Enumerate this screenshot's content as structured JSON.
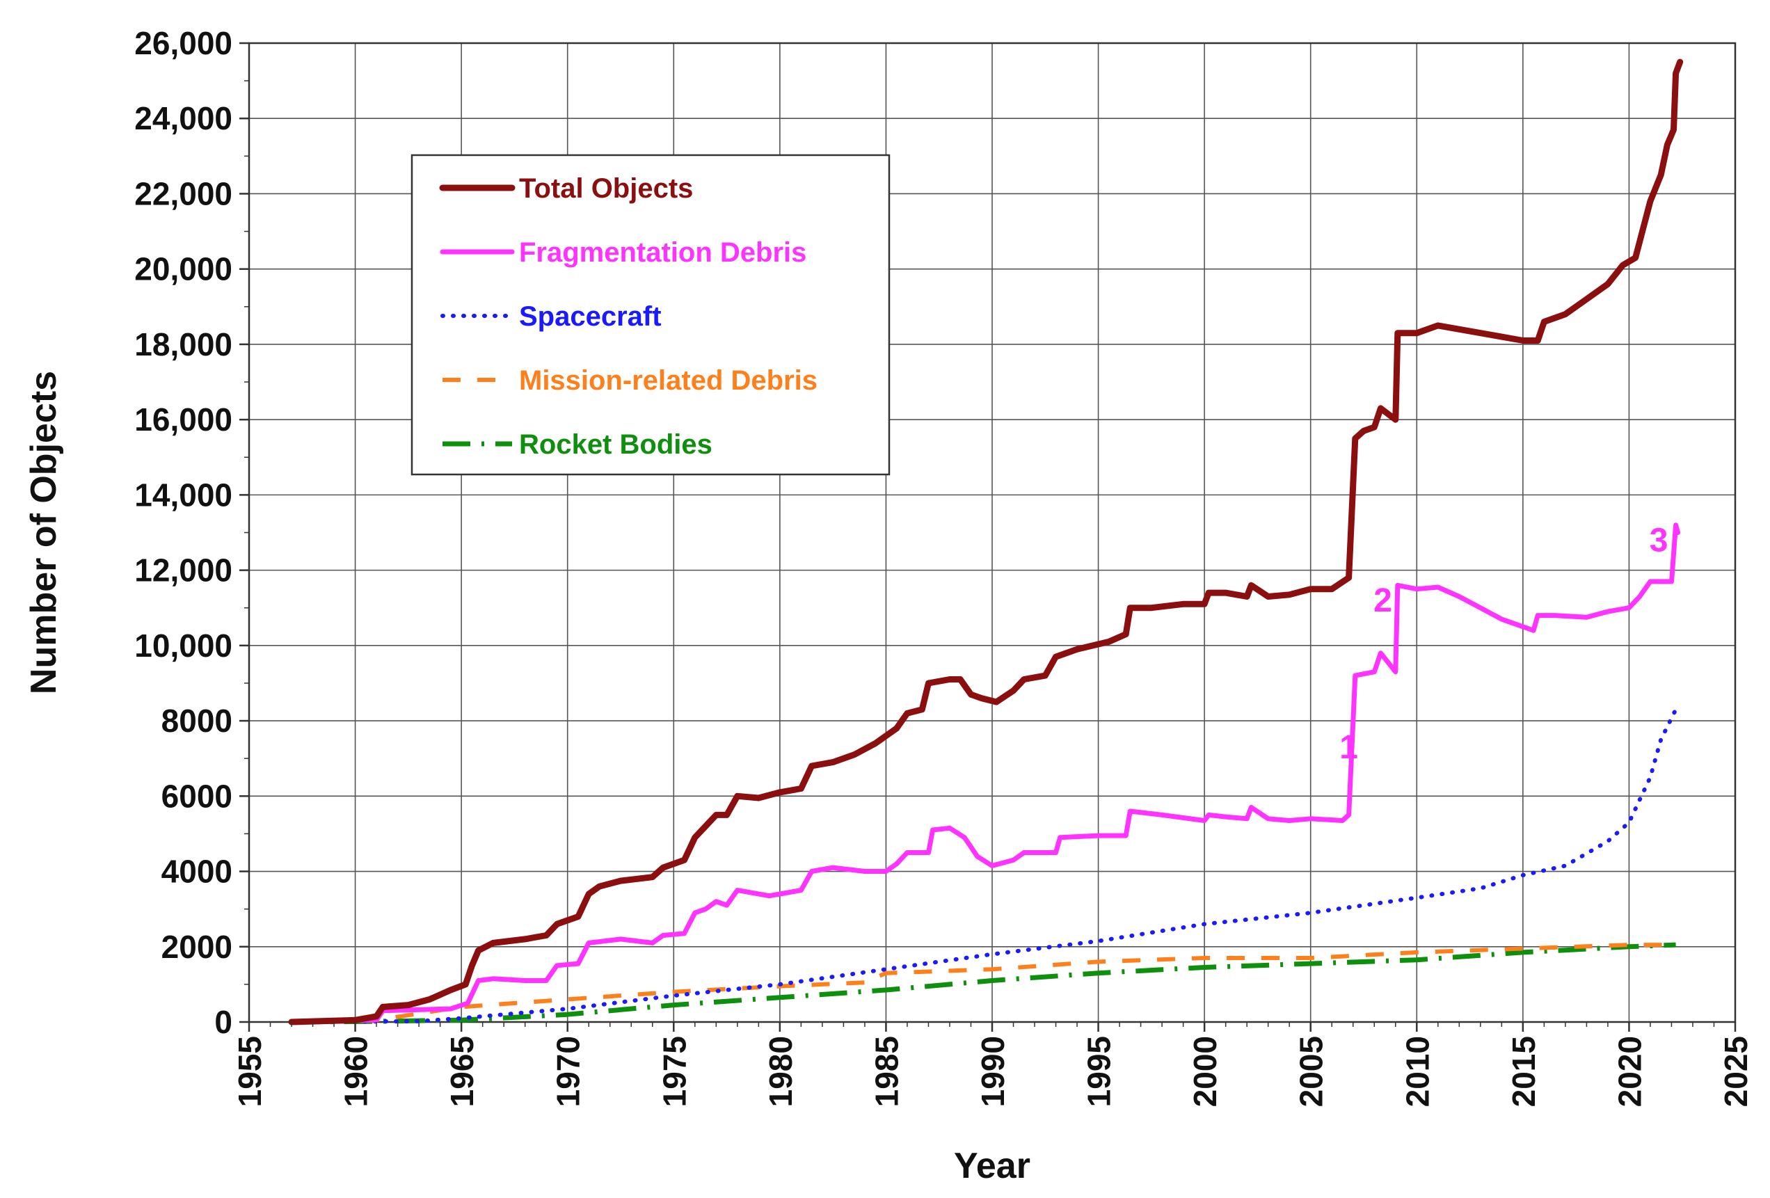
{
  "chart_data": {
    "type": "line",
    "title": "",
    "xlabel": "Year",
    "ylabel": "Number of Objects",
    "xlim": [
      1955,
      2025
    ],
    "ylim": [
      0,
      26000
    ],
    "grid": true,
    "legend_position": "top-left",
    "x_ticks": [
      1955,
      1960,
      1965,
      1970,
      1975,
      1980,
      1985,
      1990,
      1995,
      2000,
      2005,
      2010,
      2015,
      2020,
      2025
    ],
    "x_tick_labels": [
      "1955",
      "1960",
      "1965",
      "1970",
      "1975",
      "1980",
      "1985",
      "1990",
      "1995",
      "2000",
      "2005",
      "2010",
      "2015",
      "2020",
      "2025"
    ],
    "y_ticks": [
      0,
      2000,
      4000,
      6000,
      8000,
      10000,
      12000,
      14000,
      16000,
      18000,
      20000,
      22000,
      24000,
      26000
    ],
    "y_tick_labels": [
      "0",
      "2000",
      "4000",
      "6000",
      "8000",
      "10,000",
      "12,000",
      "14,000",
      "16,000",
      "18,000",
      "20,000",
      "22,000",
      "24,000",
      "26,000"
    ],
    "series": [
      {
        "name": "Total Objects",
        "color": "#8b0f0f",
        "style": "solid-thick",
        "points": [
          [
            1957,
            0
          ],
          [
            1960,
            50
          ],
          [
            1961,
            150
          ],
          [
            1961.3,
            400
          ],
          [
            1962.5,
            450
          ],
          [
            1963.5,
            600
          ],
          [
            1964.5,
            850
          ],
          [
            1965.2,
            1000
          ],
          [
            1965.5,
            1500
          ],
          [
            1965.8,
            1900
          ],
          [
            1966.5,
            2100
          ],
          [
            1968,
            2200
          ],
          [
            1969,
            2300
          ],
          [
            1969.5,
            2600
          ],
          [
            1970.5,
            2800
          ],
          [
            1971,
            3400
          ],
          [
            1971.5,
            3600
          ],
          [
            1972.5,
            3750
          ],
          [
            1974,
            3850
          ],
          [
            1974.5,
            4100
          ],
          [
            1975.5,
            4300
          ],
          [
            1976,
            4900
          ],
          [
            1976.5,
            5200
          ],
          [
            1977,
            5500
          ],
          [
            1977.5,
            5500
          ],
          [
            1978,
            6000
          ],
          [
            1979,
            5950
          ],
          [
            1980,
            6100
          ],
          [
            1981,
            6200
          ],
          [
            1981.5,
            6800
          ],
          [
            1982.5,
            6900
          ],
          [
            1983.5,
            7100
          ],
          [
            1984.5,
            7400
          ],
          [
            1985.5,
            7800
          ],
          [
            1986,
            8200
          ],
          [
            1986.7,
            8300
          ],
          [
            1987,
            9000
          ],
          [
            1988,
            9100
          ],
          [
            1988.5,
            9100
          ],
          [
            1989,
            8700
          ],
          [
            1989.5,
            8600
          ],
          [
            1990.2,
            8500
          ],
          [
            1991,
            8800
          ],
          [
            1991.5,
            9100
          ],
          [
            1992.5,
            9200
          ],
          [
            1993,
            9700
          ],
          [
            1994,
            9900
          ],
          [
            1995.5,
            10100
          ],
          [
            1996.3,
            10300
          ],
          [
            1996.5,
            11000
          ],
          [
            1997.5,
            11000
          ],
          [
            1999,
            11100
          ],
          [
            2000,
            11100
          ],
          [
            2000.2,
            11400
          ],
          [
            2001,
            11400
          ],
          [
            2002,
            11300
          ],
          [
            2002.2,
            11600
          ],
          [
            2003,
            11300
          ],
          [
            2004,
            11350
          ],
          [
            2005,
            11500
          ],
          [
            2006,
            11500
          ],
          [
            2006.8,
            11800
          ],
          [
            2007.1,
            15500
          ],
          [
            2007.5,
            15700
          ],
          [
            2008,
            15800
          ],
          [
            2008.3,
            16300
          ],
          [
            2009,
            16000
          ],
          [
            2009.1,
            18300
          ],
          [
            2010,
            18300
          ],
          [
            2011,
            18500
          ],
          [
            2012,
            18400
          ],
          [
            2013,
            18300
          ],
          [
            2014,
            18200
          ],
          [
            2015,
            18100
          ],
          [
            2015.7,
            18100
          ],
          [
            2016,
            18600
          ],
          [
            2017,
            18800
          ],
          [
            2018,
            19200
          ],
          [
            2019,
            19600
          ],
          [
            2019.7,
            20100
          ],
          [
            2020.3,
            20300
          ],
          [
            2021,
            21800
          ],
          [
            2021.5,
            22500
          ],
          [
            2021.8,
            23300
          ],
          [
            2022.1,
            23700
          ],
          [
            2022.2,
            25200
          ],
          [
            2022.4,
            25500
          ]
        ]
      },
      {
        "name": "Fragmentation Debris",
        "color": "#ff33ff",
        "style": "solid",
        "points": [
          [
            1957,
            0
          ],
          [
            1961,
            50
          ],
          [
            1961.3,
            300
          ],
          [
            1962.5,
            320
          ],
          [
            1964.5,
            350
          ],
          [
            1965.3,
            500
          ],
          [
            1965.8,
            1100
          ],
          [
            1966.5,
            1150
          ],
          [
            1968,
            1100
          ],
          [
            1969,
            1100
          ],
          [
            1969.5,
            1500
          ],
          [
            1970.5,
            1550
          ],
          [
            1971,
            2100
          ],
          [
            1972.5,
            2200
          ],
          [
            1974,
            2100
          ],
          [
            1974.5,
            2300
          ],
          [
            1975.5,
            2350
          ],
          [
            1976,
            2900
          ],
          [
            1976.5,
            3000
          ],
          [
            1977,
            3200
          ],
          [
            1977.5,
            3100
          ],
          [
            1978,
            3500
          ],
          [
            1979.5,
            3350
          ],
          [
            1980,
            3400
          ],
          [
            1981,
            3500
          ],
          [
            1981.5,
            4000
          ],
          [
            1982.5,
            4100
          ],
          [
            1984,
            4000
          ],
          [
            1985,
            4000
          ],
          [
            1985.5,
            4200
          ],
          [
            1986,
            4500
          ],
          [
            1987,
            4500
          ],
          [
            1987.2,
            5100
          ],
          [
            1988,
            5150
          ],
          [
            1988.7,
            4900
          ],
          [
            1989.3,
            4400
          ],
          [
            1990,
            4150
          ],
          [
            1991,
            4300
          ],
          [
            1991.5,
            4500
          ],
          [
            1993,
            4500
          ],
          [
            1993.2,
            4900
          ],
          [
            1995,
            4950
          ],
          [
            1996.3,
            4950
          ],
          [
            1996.5,
            5600
          ],
          [
            1998,
            5500
          ],
          [
            2000,
            5350
          ],
          [
            2000.2,
            5500
          ],
          [
            2001,
            5450
          ],
          [
            2002,
            5400
          ],
          [
            2002.2,
            5700
          ],
          [
            2003,
            5400
          ],
          [
            2004,
            5350
          ],
          [
            2005,
            5400
          ],
          [
            2006.5,
            5350
          ],
          [
            2006.8,
            5500
          ],
          [
            2007.1,
            9200
          ],
          [
            2008,
            9300
          ],
          [
            2008.3,
            9800
          ],
          [
            2009,
            9300
          ],
          [
            2009.1,
            11600
          ],
          [
            2010,
            11500
          ],
          [
            2011,
            11550
          ],
          [
            2012,
            11300
          ],
          [
            2013,
            11000
          ],
          [
            2014,
            10700
          ],
          [
            2015,
            10500
          ],
          [
            2015.5,
            10400
          ],
          [
            2015.7,
            10800
          ],
          [
            2016.5,
            10800
          ],
          [
            2018,
            10750
          ],
          [
            2019,
            10900
          ],
          [
            2020,
            11000
          ],
          [
            2020.5,
            11300
          ],
          [
            2021,
            11700
          ],
          [
            2022,
            11700
          ],
          [
            2022.2,
            13200
          ],
          [
            2022.3,
            13000
          ]
        ]
      },
      {
        "name": "Spacecraft",
        "color": "#1a1aff",
        "style": "dotted",
        "points": [
          [
            1957,
            0
          ],
          [
            1963,
            20
          ],
          [
            1965,
            100
          ],
          [
            1970,
            350
          ],
          [
            1975,
            700
          ],
          [
            1980,
            1000
          ],
          [
            1985,
            1400
          ],
          [
            1990,
            1800
          ],
          [
            1995,
            2150
          ],
          [
            2000,
            2600
          ],
          [
            2005,
            2900
          ],
          [
            2010,
            3300
          ],
          [
            2013,
            3550
          ],
          [
            2015,
            3900
          ],
          [
            2017,
            4150
          ],
          [
            2019,
            4800
          ],
          [
            2020,
            5300
          ],
          [
            2021,
            6500
          ],
          [
            2021.5,
            7500
          ],
          [
            2022.2,
            8300
          ]
        ]
      },
      {
        "name": "Mission-related Debris",
        "color": "#ff7f1a",
        "style": "dashed",
        "points": [
          [
            1957,
            0
          ],
          [
            1961,
            50
          ],
          [
            1965,
            400
          ],
          [
            1970,
            600
          ],
          [
            1975,
            800
          ],
          [
            1980,
            950
          ],
          [
            1984,
            1050
          ],
          [
            1985,
            1300
          ],
          [
            1990,
            1400
          ],
          [
            1995,
            1600
          ],
          [
            2000,
            1700
          ],
          [
            2005,
            1700
          ],
          [
            2010,
            1850
          ],
          [
            2015,
            1950
          ],
          [
            2020,
            2050
          ],
          [
            2022.2,
            2050
          ]
        ]
      },
      {
        "name": "Rocket Bodies",
        "color": "#0e8f0e",
        "style": "dash-dot",
        "points": [
          [
            1957,
            0
          ],
          [
            1960,
            10
          ],
          [
            1965,
            50
          ],
          [
            1970,
            200
          ],
          [
            1975,
            450
          ],
          [
            1980,
            650
          ],
          [
            1985,
            850
          ],
          [
            1990,
            1100
          ],
          [
            1995,
            1300
          ],
          [
            2000,
            1450
          ],
          [
            2005,
            1550
          ],
          [
            2010,
            1650
          ],
          [
            2015,
            1850
          ],
          [
            2020,
            2000
          ],
          [
            2022.2,
            2050
          ]
        ]
      }
    ],
    "annotations": [
      {
        "text": "1",
        "x": 2006.8,
        "y": 7000,
        "color": "#ff33ff"
      },
      {
        "text": "2",
        "x": 2008.4,
        "y": 10900,
        "color": "#ff33ff"
      },
      {
        "text": "3",
        "x": 2021.4,
        "y": 12500,
        "color": "#ff33ff"
      }
    ]
  }
}
